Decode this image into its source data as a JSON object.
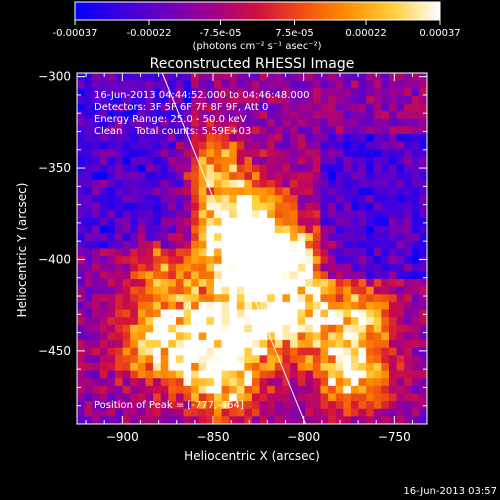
{
  "colorbar": {
    "tick_labels": [
      "-0.00037",
      "-0.00022",
      "-7.5e-05",
      "7.5e-05",
      "0.00022",
      "0.00037"
    ],
    "tick_values": [
      -0.00037,
      -0.00022,
      -7.5e-05,
      7.5e-05,
      0.00022,
      0.00037
    ],
    "unit_label": "(photons cm⁻² s⁻¹ asec⁻²)",
    "colormap": [
      "#0000ff",
      "#3a00e0",
      "#6a00c0",
      "#a0008a",
      "#d01040",
      "#f05010",
      "#ff9000",
      "#ffd040",
      "#ffffff"
    ]
  },
  "footer": {
    "timestamp": "16-Jun-2013 03:57"
  },
  "chart_data": {
    "type": "heatmap",
    "title": "Reconstructed RHESSI Image",
    "xlabel": "Heliocentric X (arcsec)",
    "ylabel": "Heliocentric Y (arcsec)",
    "xlim": [
      -925,
      -732
    ],
    "ylim": [
      -490,
      -298
    ],
    "x_ticks": [
      -900,
      -850,
      -800,
      -750
    ],
    "y_ticks": [
      -300,
      -350,
      -400,
      -450
    ],
    "x_tick_labels": [
      "−900",
      "−850",
      "−800",
      "−750"
    ],
    "y_tick_labels": [
      "−300",
      "−350",
      "−400",
      "−450"
    ],
    "clim": [
      -0.00037,
      0.00037
    ],
    "peak": [
      -777,
      -464
    ],
    "limb_line": [
      [
        -878,
        -298
      ],
      [
        -799,
        -490
      ]
    ],
    "annotations": [
      "16-Jun-2013 04:44:52.000 to 04:46:48.000",
      "Detectors: 3F 5F 6F 7F 8F 9F, Att 0",
      "Energy Range: 25.0 - 50.0 keV",
      "Clean    Total counts: 5.59E+03",
      "Position of Peak = [-777,-464]"
    ]
  }
}
